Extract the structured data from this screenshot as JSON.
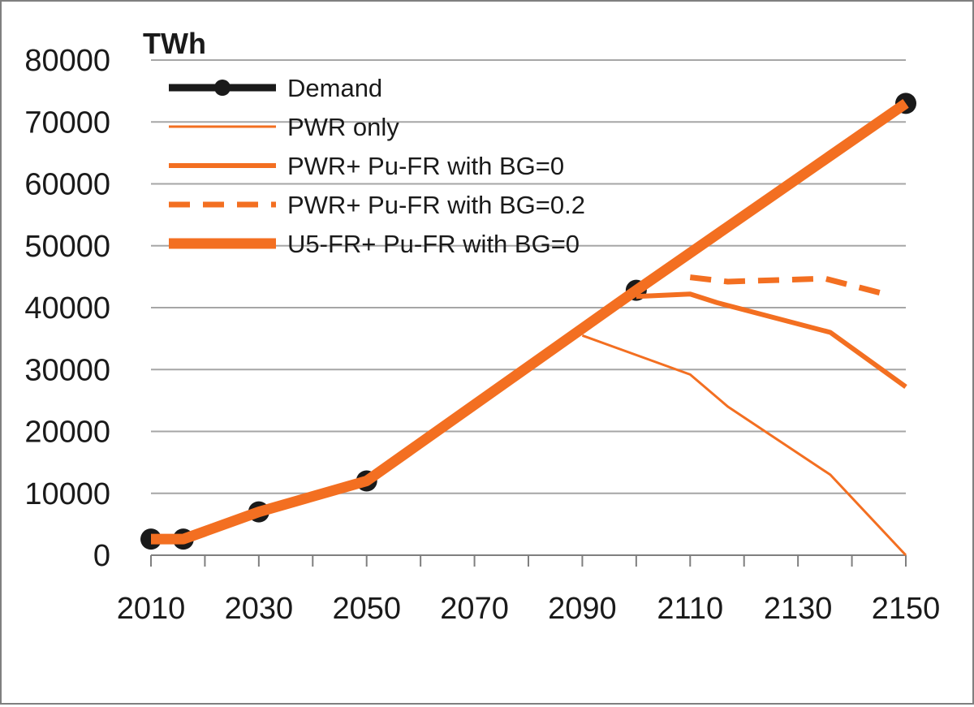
{
  "chart_data": {
    "type": "line",
    "ylabel": "TWh",
    "xlabel": "",
    "xlim": [
      2010,
      2150
    ],
    "ylim": [
      0,
      80000
    ],
    "x_ticks": [
      "2010",
      "2030",
      "2050",
      "2070",
      "2090",
      "2110",
      "2130",
      "2150"
    ],
    "y_ticks": [
      "0",
      "10000",
      "20000",
      "30000",
      "40000",
      "50000",
      "60000",
      "70000",
      "80000"
    ],
    "grid": "horizontal",
    "legend_position": "top-left",
    "series": [
      {
        "name": "Demand",
        "color": "#1a1a1a",
        "style": "thick-with-markers",
        "x": [
          2010,
          2016,
          2030,
          2050,
          2100,
          2150
        ],
        "y": [
          2600,
          2600,
          7000,
          12000,
          42800,
          73000
        ]
      },
      {
        "name": "PWR only",
        "color": "#f36f21",
        "style": "thin",
        "x": [
          2090,
          2110,
          2117,
          2136,
          2150
        ],
        "y": [
          35500,
          29200,
          24000,
          13000,
          0
        ]
      },
      {
        "name": "PWR+ Pu-FR with BG=0",
        "color": "#f36f21",
        "style": "medium",
        "x": [
          2100,
          2110,
          2115,
          2136,
          2150
        ],
        "y": [
          41800,
          42200,
          40800,
          36000,
          27200
        ]
      },
      {
        "name": "PWR+ Pu-FR with BG=0.2",
        "color": "#f36f21",
        "style": "dashed",
        "x": [
          2110,
          2117,
          2135,
          2147
        ],
        "y": [
          44900,
          44200,
          44700,
          42000
        ]
      },
      {
        "name": "U5-FR+ Pu-FR with BG=0",
        "color": "#f36f21",
        "style": "thick",
        "x": [
          2010,
          2016,
          2030,
          2050,
          2100,
          2150
        ],
        "y": [
          2600,
          2600,
          7000,
          12000,
          42800,
          73000
        ]
      }
    ]
  }
}
